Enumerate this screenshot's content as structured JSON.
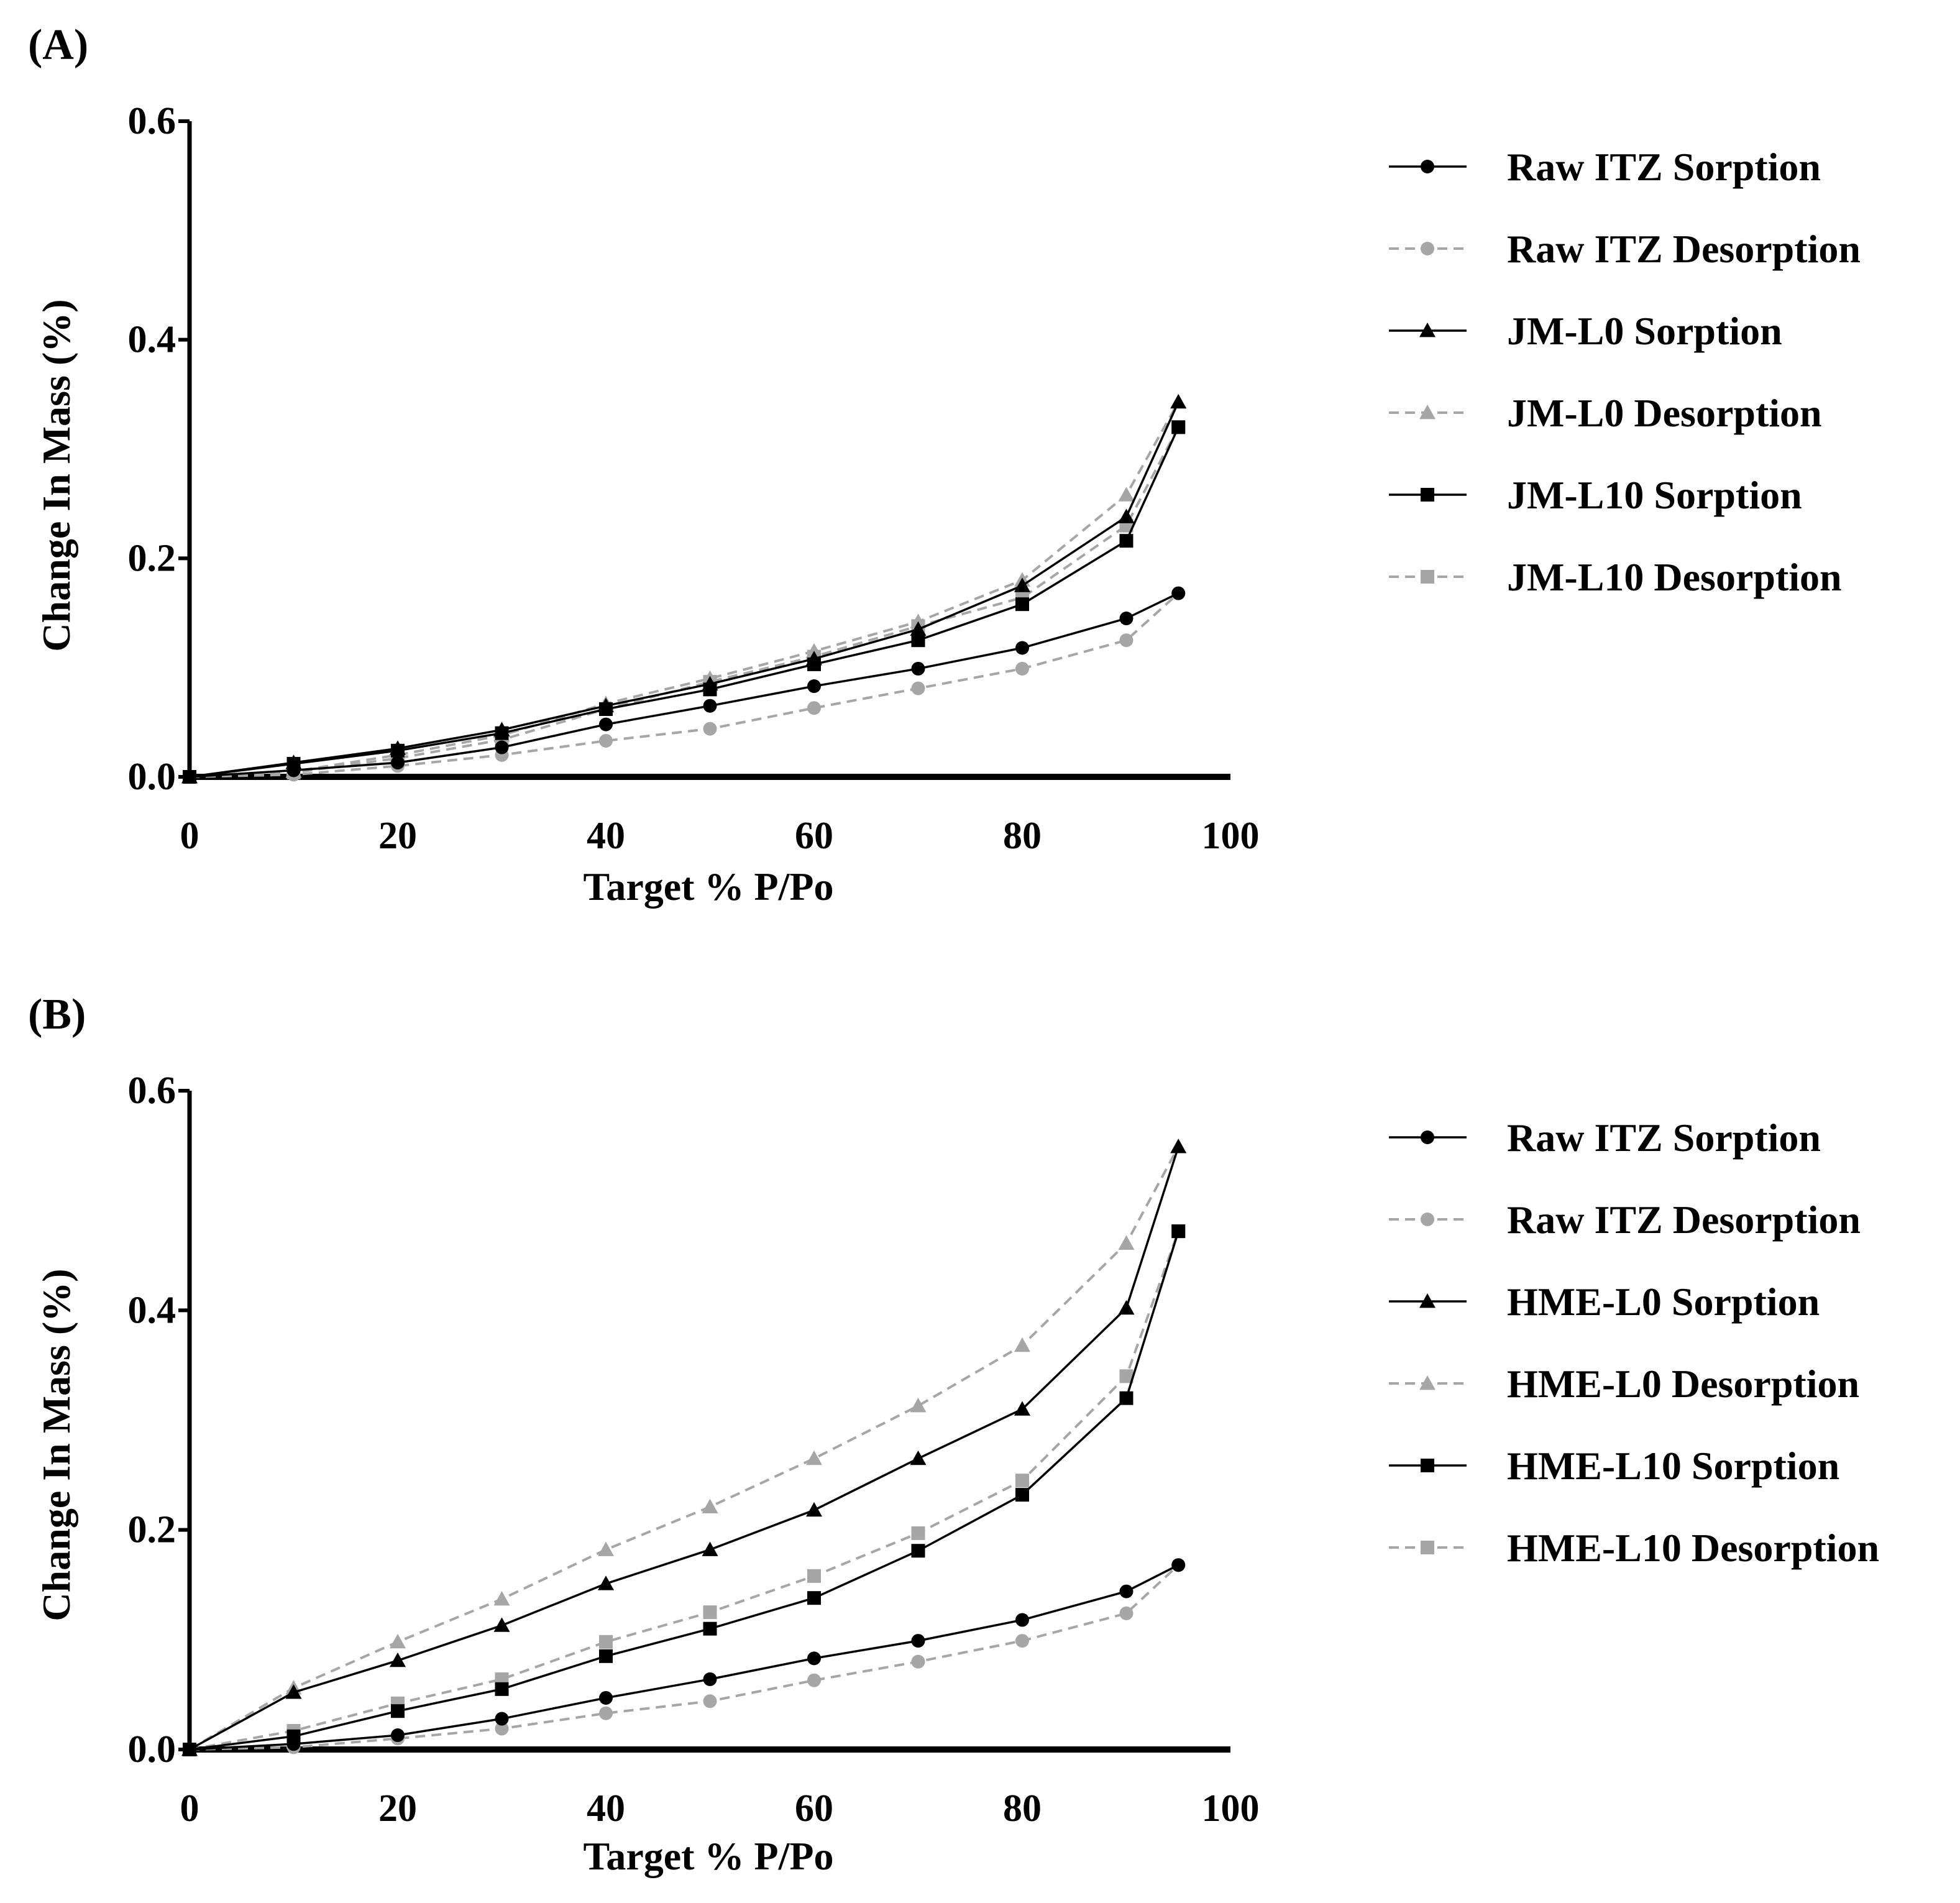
{
  "colors": {
    "sorption": "#000000",
    "desorption": "#a6a6a6",
    "axis": "#000000"
  },
  "chart_data": [
    {
      "type": "line",
      "panel_label": "(A)",
      "xlabel": "Target % P/Po",
      "ylabel": "Change In Mass (%)",
      "xlim": [
        0,
        100
      ],
      "ylim": [
        0,
        0.6
      ],
      "xticks": [
        0,
        20,
        40,
        60,
        80,
        100
      ],
      "xtick_labels": [
        "0",
        "20",
        "40",
        "60",
        "80",
        "100"
      ],
      "yticks": [
        0,
        0.2,
        0.4,
        0.6
      ],
      "ytick_labels": [
        "0.0",
        "0.2",
        "0.4",
        "0.6"
      ],
      "grid": false,
      "legend_position": "right",
      "series": [
        {
          "name": "Raw ITZ Sorption",
          "style": "solid",
          "marker": "circle",
          "color": "#000000",
          "x": [
            0,
            10,
            20,
            30,
            40,
            50,
            60,
            70,
            80,
            90,
            95
          ],
          "y": [
            0.0,
            0.006,
            0.013,
            0.027,
            0.048,
            0.065,
            0.083,
            0.099,
            0.118,
            0.145,
            0.168
          ]
        },
        {
          "name": "Raw ITZ Desorption",
          "style": "dashed",
          "marker": "circle",
          "color": "#a6a6a6",
          "x": [
            0,
            10,
            20,
            30,
            40,
            50,
            60,
            70,
            80,
            90,
            95
          ],
          "y": [
            0.0,
            0.002,
            0.01,
            0.02,
            0.033,
            0.044,
            0.063,
            0.081,
            0.099,
            0.125,
            0.168
          ]
        },
        {
          "name": "JM-L0 Sorption",
          "style": "solid",
          "marker": "triangle",
          "color": "#000000",
          "x": [
            0,
            10,
            20,
            30,
            40,
            50,
            60,
            70,
            80,
            90,
            95
          ],
          "y": [
            0.0,
            0.013,
            0.026,
            0.043,
            0.065,
            0.085,
            0.108,
            0.135,
            0.175,
            0.238,
            0.343
          ]
        },
        {
          "name": "JM-L0 Desorption",
          "style": "dashed",
          "marker": "triangle",
          "color": "#a6a6a6",
          "x": [
            0,
            10,
            20,
            30,
            40,
            50,
            60,
            70,
            80,
            90,
            95
          ],
          "y": [
            0.0,
            0.005,
            0.02,
            0.038,
            0.067,
            0.09,
            0.115,
            0.142,
            0.18,
            0.258,
            0.343
          ]
        },
        {
          "name": "JM-L10 Sorption",
          "style": "solid",
          "marker": "square",
          "color": "#000000",
          "x": [
            0,
            10,
            20,
            30,
            40,
            50,
            60,
            70,
            80,
            90,
            95
          ],
          "y": [
            0.0,
            0.012,
            0.024,
            0.04,
            0.062,
            0.08,
            0.103,
            0.125,
            0.158,
            0.216,
            0.32
          ]
        },
        {
          "name": "JM-L10 Desorption",
          "style": "dashed",
          "marker": "square",
          "color": "#a6a6a6",
          "x": [
            0,
            10,
            20,
            30,
            40,
            50,
            60,
            70,
            80,
            90,
            95
          ],
          "y": [
            0.0,
            0.004,
            0.017,
            0.034,
            0.062,
            0.087,
            0.11,
            0.138,
            0.164,
            0.23,
            0.32
          ]
        }
      ]
    },
    {
      "type": "line",
      "panel_label": "(B)",
      "xlabel": "Target % P/Po",
      "ylabel": "Change In Mass (%)",
      "xlim": [
        0,
        100
      ],
      "ylim": [
        0,
        0.6
      ],
      "xticks": [
        0,
        20,
        40,
        60,
        80,
        100
      ],
      "xtick_labels": [
        "0",
        "20",
        "40",
        "60",
        "80",
        "100"
      ],
      "yticks": [
        0,
        0.2,
        0.4,
        0.6
      ],
      "ytick_labels": [
        "0.0",
        "0.2",
        "0.4",
        "0.6"
      ],
      "grid": false,
      "legend_position": "right",
      "series": [
        {
          "name": "Raw ITZ Sorption",
          "style": "solid",
          "marker": "circle",
          "color": "#000000",
          "x": [
            0,
            10,
            20,
            30,
            40,
            50,
            60,
            70,
            80,
            90,
            95
          ],
          "y": [
            0.0,
            0.005,
            0.013,
            0.028,
            0.047,
            0.064,
            0.083,
            0.099,
            0.118,
            0.144,
            0.168
          ]
        },
        {
          "name": "Raw ITZ Desorption",
          "style": "dashed",
          "marker": "circle",
          "color": "#a6a6a6",
          "x": [
            0,
            10,
            20,
            30,
            40,
            50,
            60,
            70,
            80,
            90,
            95
          ],
          "y": [
            0.0,
            0.002,
            0.01,
            0.019,
            0.033,
            0.044,
            0.063,
            0.08,
            0.099,
            0.124,
            0.168
          ]
        },
        {
          "name": "HME-L0 Sorption",
          "style": "solid",
          "marker": "triangle",
          "color": "#000000",
          "x": [
            0,
            10,
            20,
            30,
            40,
            50,
            60,
            70,
            80,
            90,
            95
          ],
          "y": [
            0.0,
            0.052,
            0.081,
            0.113,
            0.151,
            0.182,
            0.218,
            0.265,
            0.31,
            0.402,
            0.549
          ]
        },
        {
          "name": "HME-L0 Desorption",
          "style": "dashed",
          "marker": "triangle",
          "color": "#a6a6a6",
          "x": [
            0,
            10,
            20,
            30,
            40,
            50,
            60,
            70,
            80,
            90,
            95
          ],
          "y": [
            0.0,
            0.056,
            0.098,
            0.137,
            0.182,
            0.221,
            0.265,
            0.313,
            0.368,
            0.461,
            0.549
          ]
        },
        {
          "name": "HME-L10 Sorption",
          "style": "solid",
          "marker": "square",
          "color": "#000000",
          "x": [
            0,
            10,
            20,
            30,
            40,
            50,
            60,
            70,
            80,
            90,
            95
          ],
          "y": [
            0.0,
            0.012,
            0.035,
            0.055,
            0.085,
            0.11,
            0.138,
            0.181,
            0.232,
            0.32,
            0.472
          ]
        },
        {
          "name": "HME-L10 Desorption",
          "style": "dashed",
          "marker": "square",
          "color": "#a6a6a6",
          "x": [
            0,
            10,
            20,
            30,
            40,
            50,
            60,
            70,
            80,
            90,
            95
          ],
          "y": [
            0.0,
            0.017,
            0.042,
            0.064,
            0.098,
            0.125,
            0.158,
            0.197,
            0.245,
            0.34,
            0.472
          ]
        }
      ]
    }
  ]
}
